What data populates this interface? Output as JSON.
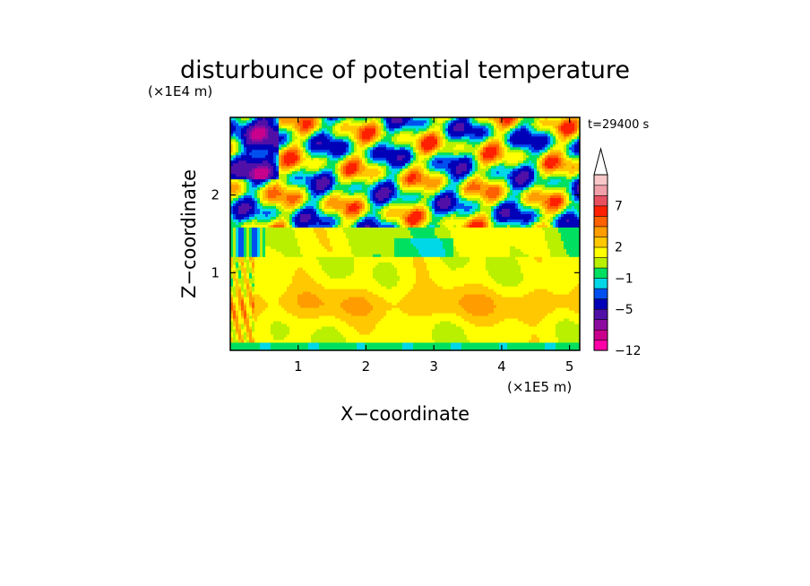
{
  "chart_data": {
    "type": "heatmap",
    "title": "disturbunce of potential temperature",
    "xlabel": "X−coordinate",
    "ylabel": "Z−coordinate",
    "x_unit": "(×1E5 m)",
    "y_unit": "(×1E4 m)",
    "time_label": "t=29400 s",
    "xlim": [
      0,
      5.15
    ],
    "ylim": [
      0,
      3.0
    ],
    "x_ticks": [
      "1",
      "2",
      "3",
      "4",
      "5"
    ],
    "x_tick_values": [
      1,
      2,
      3,
      4,
      5
    ],
    "y_ticks": [
      "1",
      "2"
    ],
    "y_tick_values": [
      1,
      2
    ],
    "colorbar": {
      "labels": [
        "7",
        "2",
        "−1",
        "−5",
        "−12"
      ],
      "colors": [
        "#ff00a8",
        "#c8008c",
        "#8c0ca0",
        "#5010a8",
        "#0000b8",
        "#0050f0",
        "#00d8e8",
        "#00e060",
        "#b8f000",
        "#ffff00",
        "#ffc800",
        "#ff9c00",
        "#ff6000",
        "#ff2000",
        "#e85060",
        "#f0a0a8",
        "#f8c8c8"
      ],
      "extend_top": true
    },
    "bands": [
      {
        "z_range": [
          0,
          0.1
        ],
        "dominant": "green/cyan (near zero)"
      },
      {
        "z_range": [
          0.1,
          1.2
        ],
        "dominant": "yellow/orange (positive, ~1 to 4)"
      },
      {
        "z_range": [
          1.2,
          1.6
        ],
        "dominant": "yellow/green with light-blue patches"
      },
      {
        "z_range": [
          1.6,
          3.0
        ],
        "dominant": "alternating orange/red and blue/purple wave structures (−7 to +7)"
      }
    ]
  }
}
